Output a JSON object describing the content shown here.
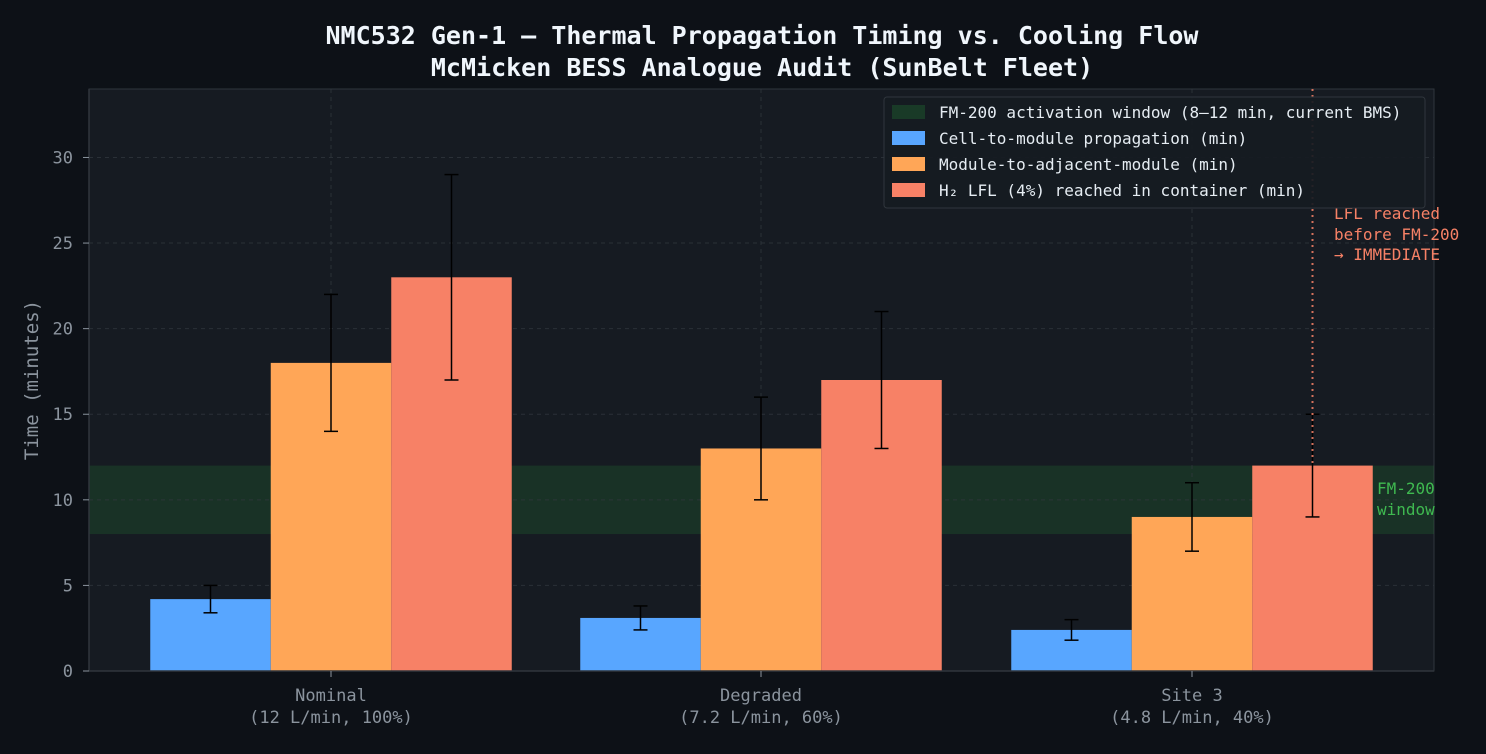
{
  "chart_data": {
    "type": "bar",
    "title": "NMC532 Gen-1 — Thermal Propagation Timing vs. Cooling Flow",
    "subtitle": "McMicken BESS Analogue Audit (SunBelt Fleet)",
    "ylabel": "Time (minutes)",
    "xlabel": "",
    "ylim": [
      0,
      34
    ],
    "yticks": [
      0,
      5,
      10,
      15,
      20,
      25,
      30
    ],
    "grid": true,
    "legend_position": "top-right",
    "categories": [
      {
        "line1": "Nominal",
        "line2": "(12 L/min, 100%)"
      },
      {
        "line1": "Degraded",
        "line2": "(7.2 L/min, 60%)"
      },
      {
        "line1": "Site 3",
        "line2": "(4.8 L/min, 40%)"
      }
    ],
    "series": [
      {
        "name": "Cell-to-module propagation (min)",
        "color": "#58a6ff",
        "values": [
          4.2,
          3.1,
          2.4
        ],
        "err_low": [
          3.4,
          2.4,
          1.8
        ],
        "err_high": [
          5.0,
          3.8,
          3.0
        ]
      },
      {
        "name": "Module-to-adjacent-module (min)",
        "color": "#ffa657",
        "values": [
          18,
          13,
          9
        ],
        "err_low": [
          14,
          10,
          7
        ],
        "err_high": [
          22,
          16,
          11
        ]
      },
      {
        "name": "H₂ LFL (4%) reached in container (min)",
        "color": "#f78166",
        "values": [
          23,
          17,
          12
        ],
        "err_low": [
          17,
          13,
          9
        ],
        "err_high": [
          29,
          21,
          15
        ]
      }
    ],
    "band": {
      "name": "FM-200 activation window (8–12 min, current BMS)",
      "from": 8,
      "to": 12,
      "color": "#238636",
      "label_line1": "FM-200",
      "label_line2": "window",
      "label_color": "#3fb950"
    },
    "annotation": {
      "category_index": 2,
      "series_index": 2,
      "line1": "LFL reached",
      "line2": "before FM-200",
      "line3": "→ IMMEDIATE",
      "color": "#f78166"
    }
  }
}
